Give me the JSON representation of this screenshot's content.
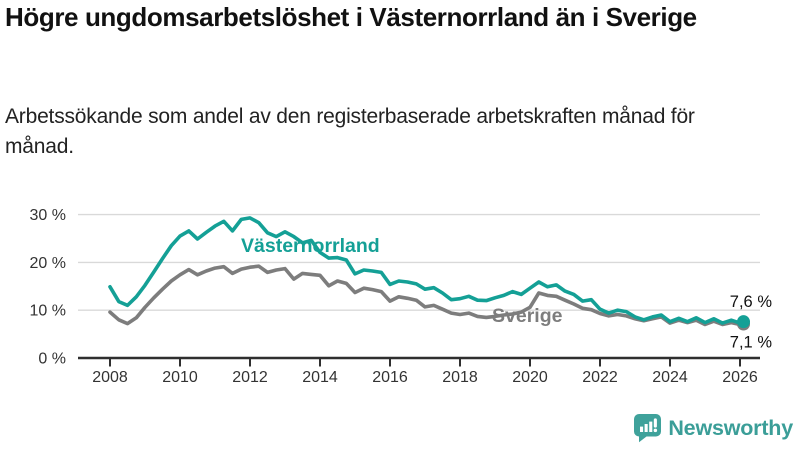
{
  "header": {
    "title": "Högre ungdomsarbetslöshet i Västernorrland än i Sverige",
    "subtitle": "Arbetssökande som andel av den registerbaserade arbetskraften månad för månad."
  },
  "chart_data": {
    "type": "line",
    "x_unit": "decimal_year_monthly_series_shown_quarterly",
    "grid": "horizontal",
    "legend_position": "inline-labels-on-lines",
    "xlim": [
      2007.1,
      2026.5
    ],
    "ylim": [
      0,
      31
    ],
    "x_ticks": [
      2008,
      2010,
      2012,
      2014,
      2016,
      2018,
      2020,
      2022,
      2024,
      2026
    ],
    "x_tick_labels": [
      "2008",
      "2010",
      "2012",
      "2014",
      "2016",
      "2018",
      "2020",
      "2022",
      "2024",
      "2026"
    ],
    "y_ticks": [
      0,
      10,
      20,
      30
    ],
    "y_tick_labels": [
      "0 %",
      "10 %",
      "20 %",
      "30 %"
    ],
    "x": [
      2008,
      2008.25,
      2008.5,
      2008.75,
      2009,
      2009.25,
      2009.5,
      2009.75,
      2010,
      2010.25,
      2010.5,
      2010.75,
      2011,
      2011.25,
      2011.5,
      2011.75,
      2012,
      2012.25,
      2012.5,
      2012.75,
      2013,
      2013.25,
      2013.5,
      2013.75,
      2014,
      2014.25,
      2014.5,
      2014.75,
      2015,
      2015.25,
      2015.5,
      2015.75,
      2016,
      2016.25,
      2016.5,
      2016.75,
      2017,
      2017.25,
      2017.5,
      2017.75,
      2018,
      2018.25,
      2018.5,
      2018.75,
      2019,
      2019.25,
      2019.5,
      2019.75,
      2020,
      2020.25,
      2020.5,
      2020.75,
      2021,
      2021.25,
      2021.5,
      2021.75,
      2022,
      2022.25,
      2022.5,
      2022.75,
      2023,
      2023.25,
      2023.5,
      2023.75,
      2024,
      2024.25,
      2024.5,
      2024.75,
      2025,
      2025.25,
      2025.5,
      2025.75,
      2026,
      2026.1
    ],
    "series": [
      {
        "name": "Västernorrland",
        "color": "#14a096",
        "end_label": "7,6 %",
        "end_value": 7.6,
        "values": [
          14.9,
          11.8,
          11.0,
          12.8,
          15.2,
          18.0,
          20.8,
          23.5,
          25.5,
          26.6,
          24.9,
          26.3,
          27.6,
          28.6,
          26.6,
          29.0,
          29.3,
          28.3,
          26.2,
          25.4,
          26.4,
          25.4,
          24.1,
          24.6,
          22.1,
          20.9,
          21.0,
          20.5,
          17.6,
          18.4,
          18.2,
          17.9,
          15.4,
          16.1,
          15.9,
          15.5,
          14.4,
          14.7,
          13.6,
          12.2,
          12.4,
          12.9,
          12.1,
          12.0,
          12.6,
          13.1,
          13.9,
          13.3,
          14.6,
          15.9,
          14.9,
          15.3,
          14.0,
          13.3,
          11.9,
          12.2,
          10.2,
          9.4,
          10.0,
          9.7,
          8.6,
          8.0,
          8.6,
          9.0,
          7.6,
          8.3,
          7.6,
          8.4,
          7.4,
          8.2,
          7.3,
          7.9,
          7.3,
          7.6
        ]
      },
      {
        "name": "Sverige",
        "color": "#7d7d7d",
        "end_label": "7,1 %",
        "end_value": 7.1,
        "values": [
          9.6,
          8.0,
          7.2,
          8.4,
          10.6,
          12.6,
          14.4,
          16.1,
          17.4,
          18.5,
          17.4,
          18.2,
          18.8,
          19.1,
          17.7,
          18.6,
          19.0,
          19.2,
          17.9,
          18.4,
          18.7,
          16.5,
          17.7,
          17.5,
          17.3,
          15.1,
          16.1,
          15.6,
          13.7,
          14.6,
          14.3,
          13.9,
          11.9,
          12.8,
          12.5,
          12.1,
          10.7,
          11.0,
          10.2,
          9.4,
          9.1,
          9.4,
          8.7,
          8.5,
          8.7,
          9.0,
          9.2,
          9.6,
          10.6,
          13.6,
          13.1,
          12.9,
          12.1,
          11.3,
          10.4,
          10.1,
          9.3,
          8.8,
          9.1,
          8.8,
          8.2,
          7.8,
          8.2,
          8.6,
          7.3,
          7.9,
          7.4,
          7.9,
          7.0,
          7.7,
          7.0,
          7.4,
          7.0,
          7.1
        ]
      }
    ],
    "axis_color": "#2f2f2f",
    "grid_color": "#d9d9d9"
  },
  "footer": {
    "brand": "Newsworthy",
    "brand_color": "#3b9e98",
    "brand_icon": "newsworthy-speech-bubble-chart-icon"
  }
}
